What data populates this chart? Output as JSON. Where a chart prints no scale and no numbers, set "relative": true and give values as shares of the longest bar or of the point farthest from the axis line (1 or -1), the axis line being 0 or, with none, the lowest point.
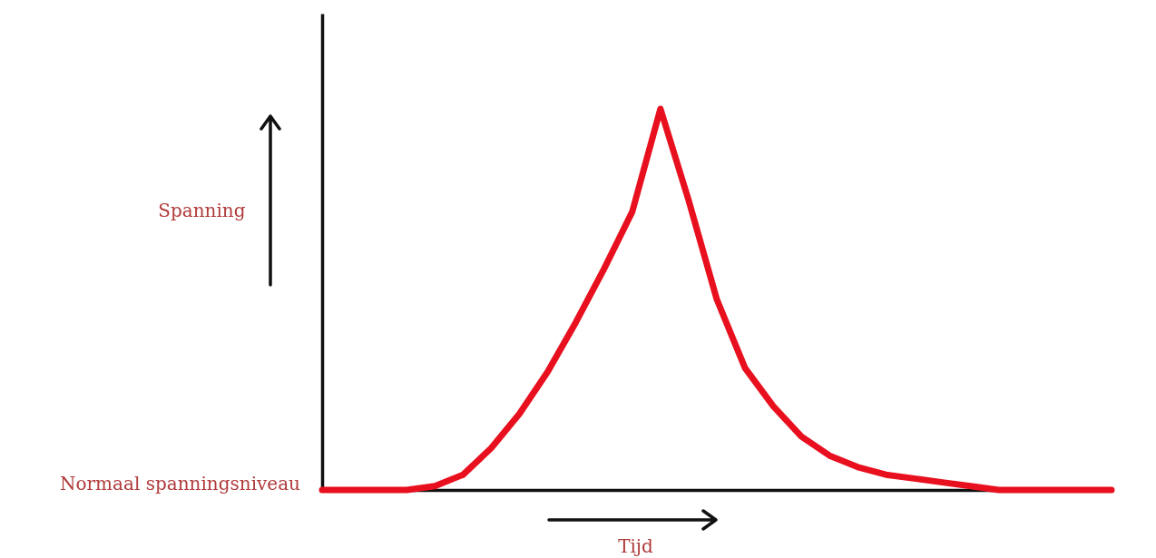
{
  "chart_data": {
    "type": "line",
    "relative": true,
    "xlabel": "Tijd",
    "ylabel": "Spanning",
    "categories": [
      null,
      null,
      null,
      null,
      null,
      null,
      null,
      null,
      null,
      null,
      null,
      null,
      null,
      null,
      null,
      null,
      null,
      null,
      null,
      null,
      null,
      null,
      null,
      null,
      null,
      null,
      null,
      null,
      null
    ],
    "series": [
      {
        "color": "#e8101e",
        "values": [
          0,
          0,
          0,
          0,
          0.01,
          0.04,
          0.11,
          0.2,
          0.31,
          0.44,
          0.58,
          0.73,
          1,
          0.76,
          0.5,
          0.32,
          0.22,
          0.14,
          0.09,
          0.06,
          0.04,
          0.03,
          0.02,
          0.01,
          0,
          0,
          0,
          0,
          0
        ]
      }
    ],
    "annotations": [
      "Normaal spanningsniveau"
    ],
    "grid": false,
    "marker": "none",
    "line_style": "solid"
  }
}
